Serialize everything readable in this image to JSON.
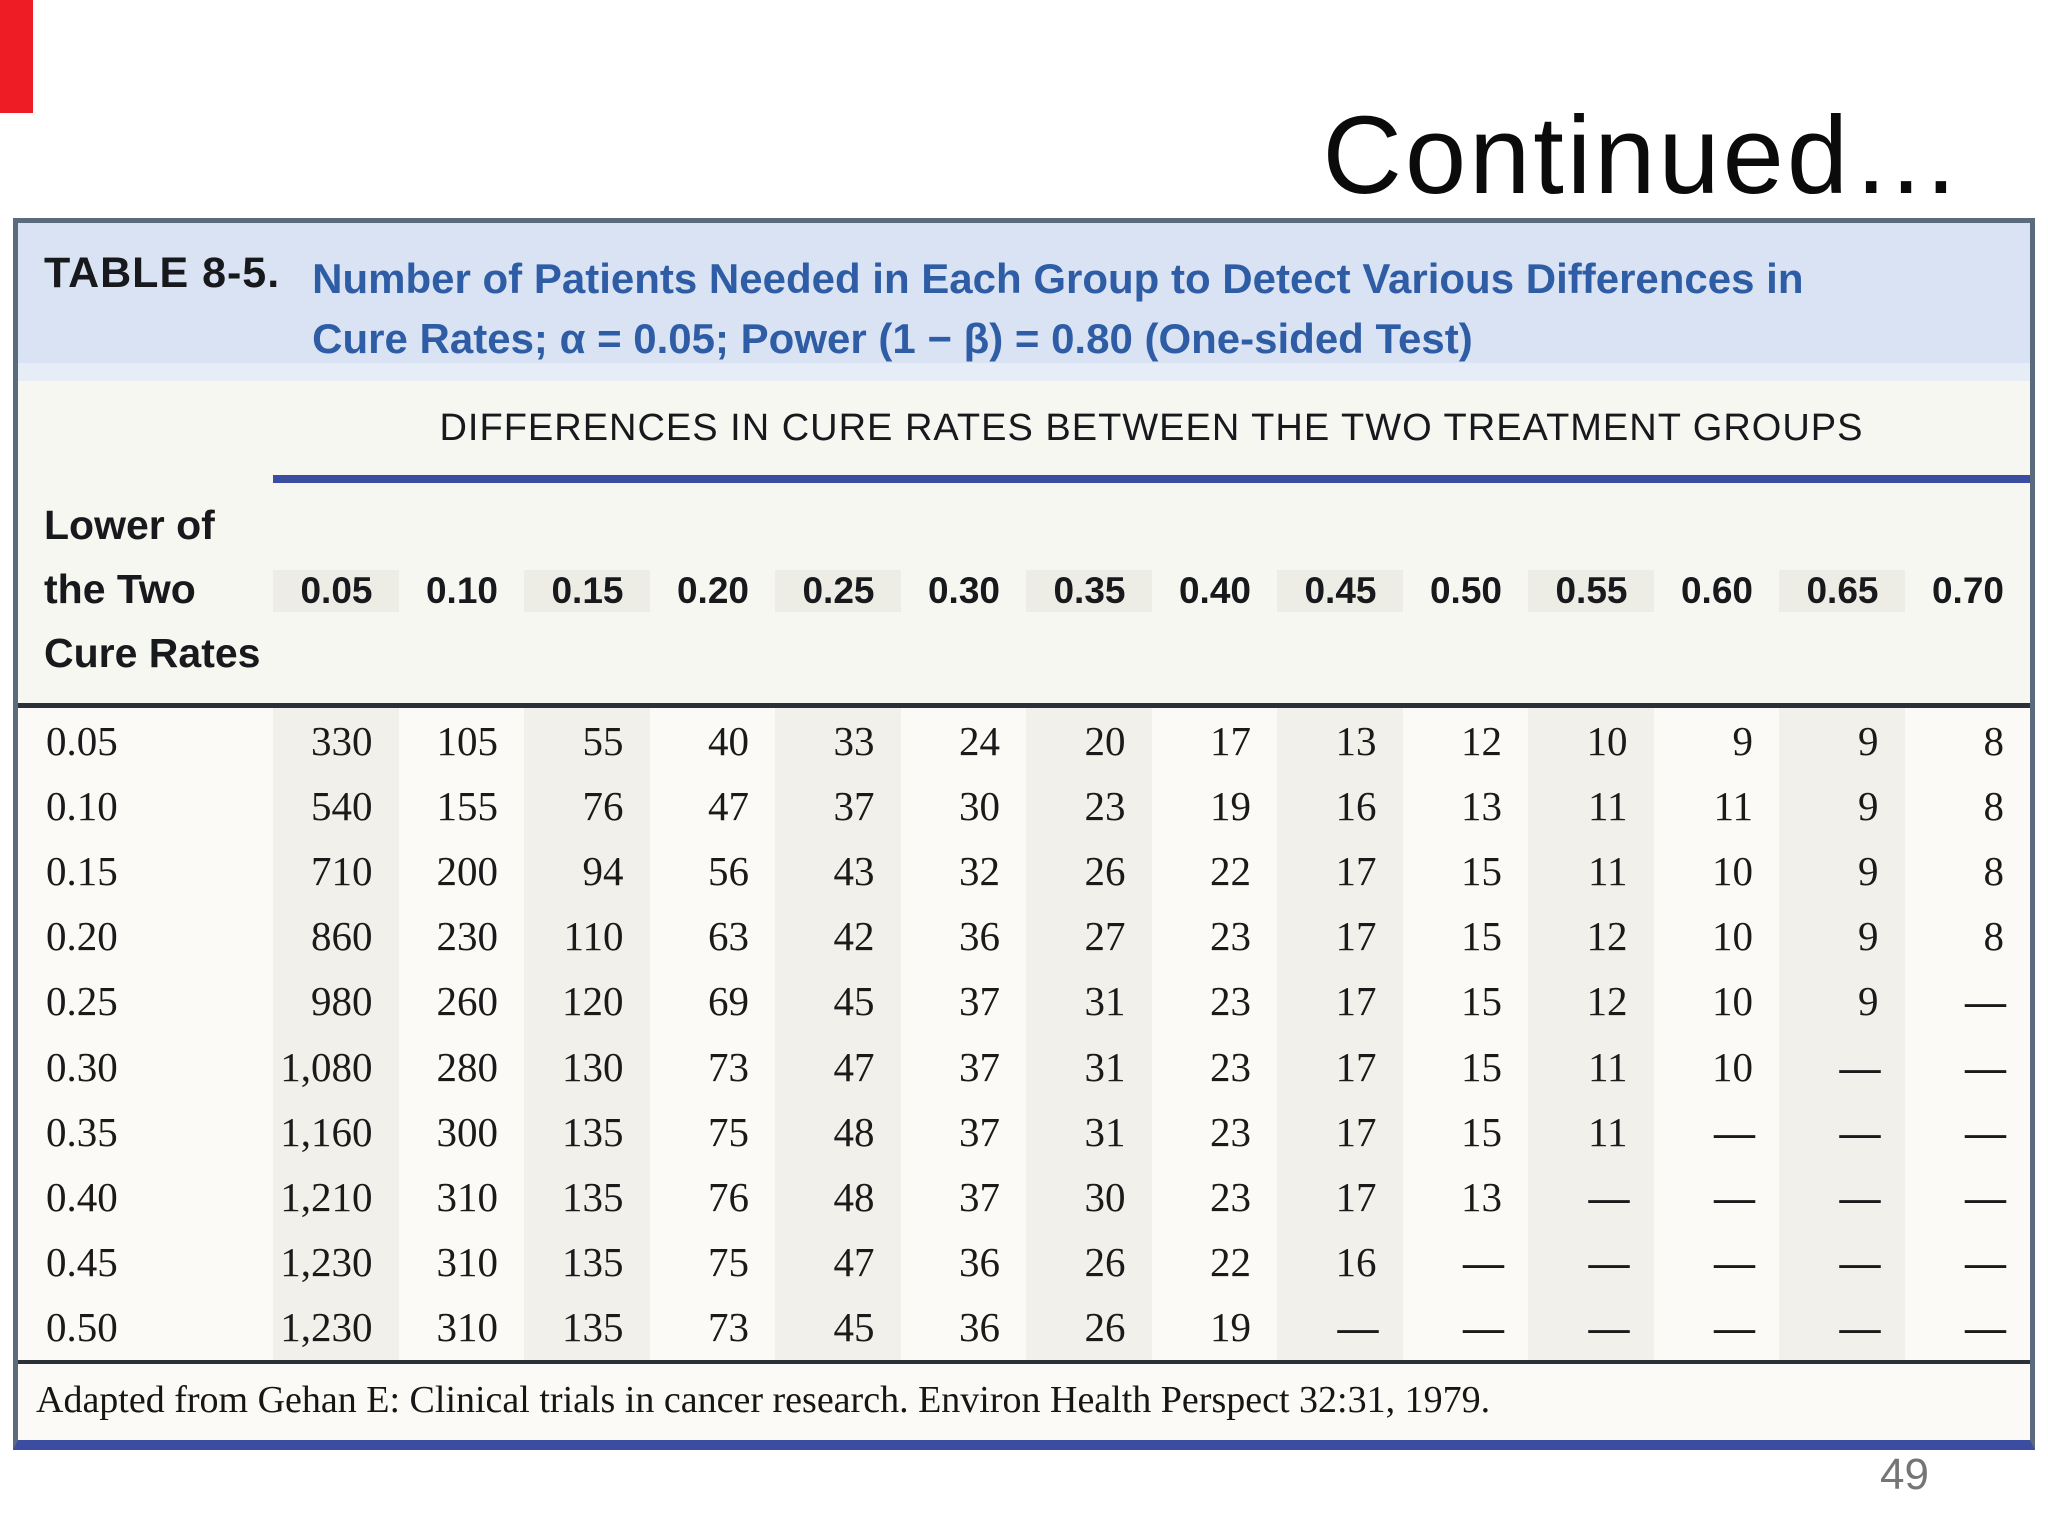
{
  "slide": {
    "continued_title": "Continued…",
    "page_number": "49"
  },
  "colors": {
    "red_accent": "#ee1c25",
    "header_band_blue": "#d9e3f3",
    "title_blue": "#2e5da6",
    "rule_blue": "#3b4da0",
    "border_gray": "#5c6b7c"
  },
  "table": {
    "label": "TABLE 8-5.",
    "title_line1": "Number of Patients Needed in Each Group to Detect Various Differences in",
    "title_line2": "Cure Rates; α = 0.05; Power (1 − β) = 0.80 (One-sided Test)",
    "row_header_lines": [
      "Lower of",
      "the Two",
      "Cure Rates"
    ],
    "col_group_header": "DIFFERENCES IN CURE RATES BETWEEN THE TWO TREATMENT GROUPS",
    "columns": [
      "0.05",
      "0.10",
      "0.15",
      "0.20",
      "0.25",
      "0.30",
      "0.35",
      "0.40",
      "0.45",
      "0.50",
      "0.55",
      "0.60",
      "0.65",
      "0.70"
    ],
    "rows": [
      {
        "label": "0.05",
        "values": [
          "330",
          "105",
          "55",
          "40",
          "33",
          "24",
          "20",
          "17",
          "13",
          "12",
          "10",
          "9",
          "9",
          "8"
        ]
      },
      {
        "label": "0.10",
        "values": [
          "540",
          "155",
          "76",
          "47",
          "37",
          "30",
          "23",
          "19",
          "16",
          "13",
          "11",
          "11",
          "9",
          "8"
        ]
      },
      {
        "label": "0.15",
        "values": [
          "710",
          "200",
          "94",
          "56",
          "43",
          "32",
          "26",
          "22",
          "17",
          "15",
          "11",
          "10",
          "9",
          "8"
        ]
      },
      {
        "label": "0.20",
        "values": [
          "860",
          "230",
          "110",
          "63",
          "42",
          "36",
          "27",
          "23",
          "17",
          "15",
          "12",
          "10",
          "9",
          "8"
        ]
      },
      {
        "label": "0.25",
        "values": [
          "980",
          "260",
          "120",
          "69",
          "45",
          "37",
          "31",
          "23",
          "17",
          "15",
          "12",
          "10",
          "9",
          "—"
        ]
      },
      {
        "label": "0.30",
        "values": [
          "1,080",
          "280",
          "130",
          "73",
          "47",
          "37",
          "31",
          "23",
          "17",
          "15",
          "11",
          "10",
          "—",
          "—"
        ]
      },
      {
        "label": "0.35",
        "values": [
          "1,160",
          "300",
          "135",
          "75",
          "48",
          "37",
          "31",
          "23",
          "17",
          "15",
          "11",
          "—",
          "—",
          "—"
        ]
      },
      {
        "label": "0.40",
        "values": [
          "1,210",
          "310",
          "135",
          "76",
          "48",
          "37",
          "30",
          "23",
          "17",
          "13",
          "—",
          "—",
          "—",
          "—"
        ]
      },
      {
        "label": "0.45",
        "values": [
          "1,230",
          "310",
          "135",
          "75",
          "47",
          "36",
          "26",
          "22",
          "16",
          "—",
          "—",
          "—",
          "—",
          "—"
        ]
      },
      {
        "label": "0.50",
        "values": [
          "1,230",
          "310",
          "135",
          "73",
          "45",
          "36",
          "26",
          "19",
          "—",
          "—",
          "—",
          "—",
          "—",
          "—"
        ]
      }
    ],
    "footnote": "Adapted from Gehan E: Clinical trials in cancer research. Environ Health Perspect 32:31, 1979."
  }
}
